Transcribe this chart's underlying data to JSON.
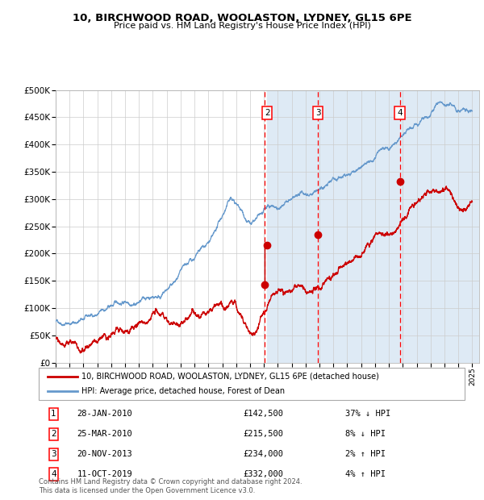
{
  "title1": "10, BIRCHWOOD ROAD, WOOLASTON, LYDNEY, GL15 6PE",
  "title2": "Price paid vs. HM Land Registry's House Price Index (HPI)",
  "legend_line1": "10, BIRCHWOOD ROAD, WOOLASTON, LYDNEY, GL15 6PE (detached house)",
  "legend_line2": "HPI: Average price, detached house, Forest of Dean",
  "footnote": "Contains HM Land Registry data © Crown copyright and database right 2024.\nThis data is licensed under the Open Government Licence v3.0.",
  "sale_color": "#cc0000",
  "hpi_color": "#6699cc",
  "shade_color": "#deeaf5",
  "grid_color": "#cccccc",
  "transactions": [
    {
      "num": 1,
      "date": "28-JAN-2010",
      "date_val": 2010.07,
      "price": 142500,
      "pct": "37% ↓ HPI"
    },
    {
      "num": 2,
      "date": "25-MAR-2010",
      "date_val": 2010.23,
      "price": 215500,
      "pct": "8% ↓ HPI"
    },
    {
      "num": 3,
      "date": "20-NOV-2013",
      "date_val": 2013.89,
      "price": 234000,
      "pct": "2% ↑ HPI"
    },
    {
      "num": 4,
      "date": "11-OCT-2019",
      "date_val": 2019.78,
      "price": 332000,
      "pct": "4% ↑ HPI"
    }
  ],
  "ylim": [
    0,
    500000
  ],
  "yticks": [
    0,
    50000,
    100000,
    150000,
    200000,
    250000,
    300000,
    350000,
    400000,
    450000,
    500000
  ],
  "xmin": 1995.0,
  "xmax": 2025.5,
  "xticks": [
    1995,
    1996,
    1997,
    1998,
    1999,
    2000,
    2001,
    2002,
    2003,
    2004,
    2005,
    2006,
    2007,
    2008,
    2009,
    2010,
    2011,
    2012,
    2013,
    2014,
    2015,
    2016,
    2017,
    2018,
    2019,
    2020,
    2021,
    2022,
    2023,
    2024,
    2025
  ],
  "table_rows": [
    [
      1,
      "28-JAN-2010",
      "£142,500",
      "37% ↓ HPI"
    ],
    [
      2,
      "25-MAR-2010",
      "£215,500",
      "8% ↓ HPI"
    ],
    [
      3,
      "20-NOV-2013",
      "£234,000",
      "2% ↑ HPI"
    ],
    [
      4,
      "11-OCT-2019",
      "£332,000",
      "4% ↑ HPI"
    ]
  ]
}
